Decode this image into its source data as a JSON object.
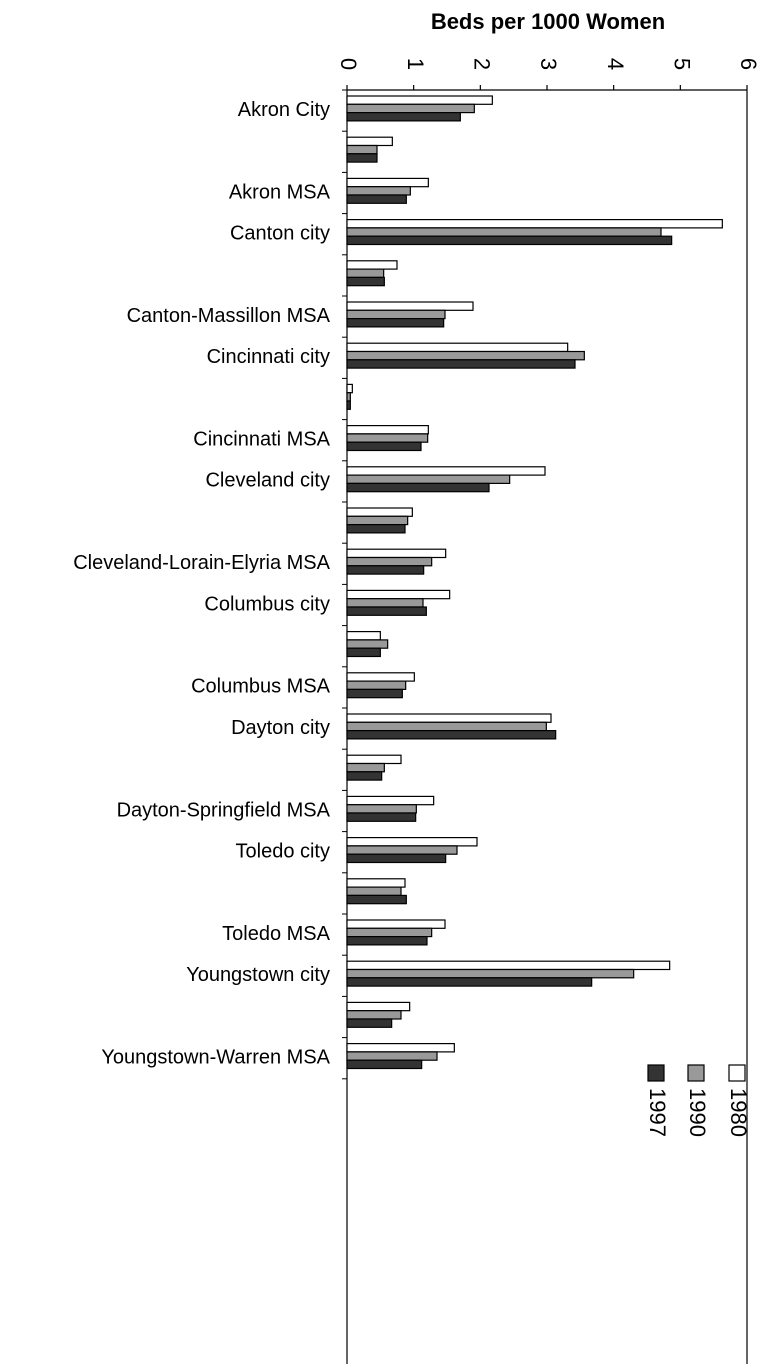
{
  "chart_data": {
    "type": "bar",
    "orientation": "horizontal",
    "title": "",
    "xlabel": "Beds per 1000 Women",
    "ylabel": "",
    "xlim": [
      0,
      6
    ],
    "xticks": [
      "0",
      "1",
      "2",
      "3",
      "4",
      "5",
      "6"
    ],
    "grid": false,
    "legend_position": "right",
    "categories": [
      "Akron City",
      "",
      "Akron MSA",
      "Canton city",
      "",
      "Canton-Massillon MSA",
      "Cincinnati city",
      "",
      "Cincinnati MSA",
      "Cleveland city",
      "",
      "Cleveland-Lorain-Elyria MSA",
      "Columbus city",
      "",
      "Columbus MSA",
      "Dayton city",
      "",
      "Dayton-Springfield MSA",
      "Toledo city",
      "",
      "Toledo MSA",
      "Youngstown city",
      "",
      "Youngstown-Warren MSA"
    ],
    "series": [
      {
        "name": "1980",
        "color": "#ffffff",
        "values": [
          2.18,
          0.68,
          1.22,
          5.63,
          0.75,
          1.89,
          3.31,
          0.08,
          1.22,
          2.97,
          0.98,
          1.48,
          1.54,
          0.5,
          1.01,
          3.06,
          0.81,
          1.3,
          1.95,
          0.87,
          1.47,
          4.84,
          0.94,
          1.61
        ]
      },
      {
        "name": "1990",
        "color": "#999999",
        "values": [
          1.91,
          0.45,
          0.95,
          4.71,
          0.55,
          1.47,
          3.56,
          0.05,
          1.21,
          2.44,
          0.91,
          1.27,
          1.14,
          0.61,
          0.88,
          2.99,
          0.56,
          1.04,
          1.65,
          0.81,
          1.27,
          4.3,
          0.81,
          1.35
        ]
      },
      {
        "name": "1997",
        "color": "#333333",
        "values": [
          1.7,
          0.45,
          0.89,
          4.87,
          0.56,
          1.45,
          3.42,
          0.05,
          1.11,
          2.13,
          0.87,
          1.15,
          1.19,
          0.5,
          0.83,
          3.13,
          0.52,
          1.03,
          1.48,
          0.89,
          1.2,
          3.67,
          0.67,
          1.12
        ]
      }
    ]
  }
}
